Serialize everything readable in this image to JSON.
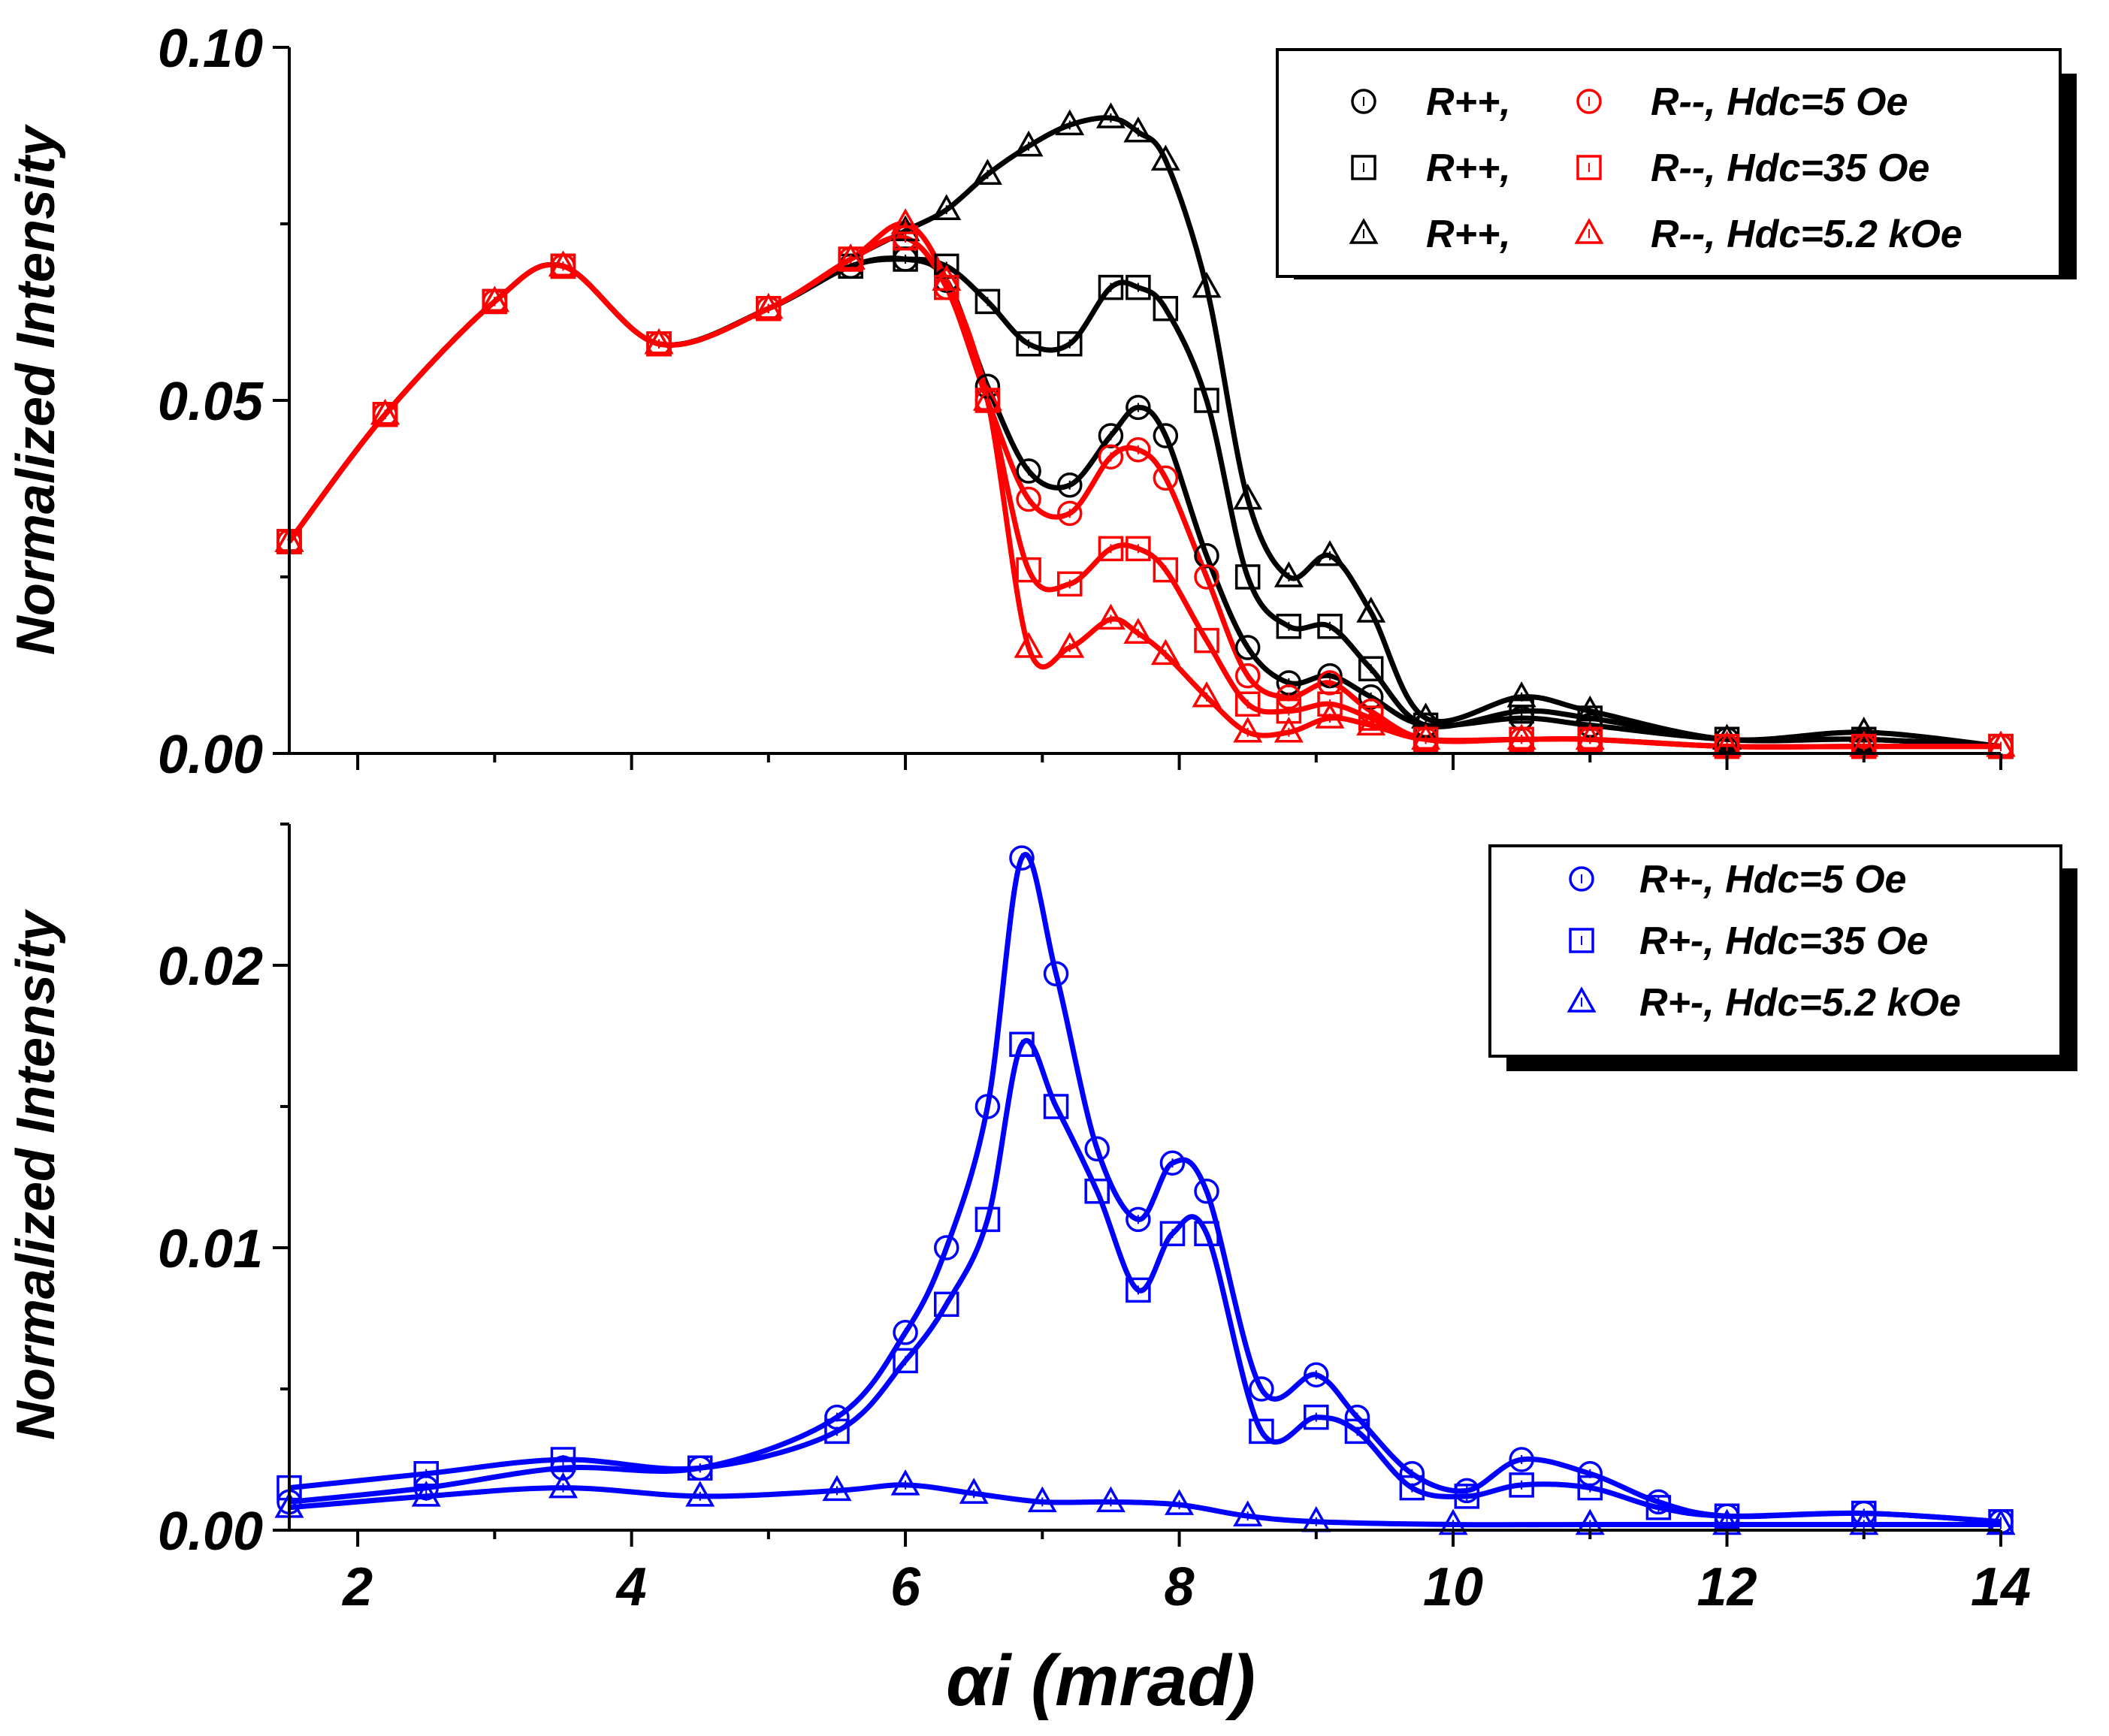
{
  "chart_data": [
    {
      "type": "scatter",
      "panel": "top",
      "xlabel": "",
      "ylabel": "Normalized Intensity",
      "xlim": [
        1.5,
        14
      ],
      "ylim": [
        0,
        0.1
      ],
      "yticks": [
        {
          "v": 0,
          "label": "0.00"
        },
        {
          "v": 0.05,
          "label": "0.05"
        },
        {
          "v": 0.1,
          "label": "0.10"
        }
      ],
      "legend": {
        "position": "top-right",
        "columns": [
          [
            "R++,",
            "R++,",
            "R++,"
          ],
          [
            "R--, Hdc=5 Oe",
            "R--, Hdc=35 Oe",
            "R--, Hdc=5.2 kOe"
          ]
        ]
      },
      "series": [
        {
          "name": "R++, Hdc=5 Oe",
          "color": "#000000",
          "marker": "circle",
          "x": [
            1.5,
            2.2,
            3.0,
            3.5,
            4.2,
            5.0,
            5.6,
            6.0,
            6.3,
            6.6,
            6.9,
            7.2,
            7.5,
            7.7,
            7.9,
            8.2,
            8.5,
            8.8,
            9.1,
            9.4,
            9.8,
            10.5,
            11.0,
            12.0,
            13.0,
            14.0
          ],
          "y": [
            0.03,
            0.048,
            0.064,
            0.069,
            0.058,
            0.063,
            0.069,
            0.07,
            0.067,
            0.052,
            0.04,
            0.038,
            0.045,
            0.049,
            0.045,
            0.028,
            0.015,
            0.01,
            0.011,
            0.008,
            0.004,
            0.005,
            0.004,
            0.002,
            0.002,
            0.001
          ]
        },
        {
          "name": "R++, Hdc=35 Oe",
          "color": "#000000",
          "marker": "square",
          "x": [
            1.5,
            2.2,
            3.0,
            3.5,
            4.2,
            5.0,
            5.6,
            6.0,
            6.3,
            6.6,
            6.9,
            7.2,
            7.5,
            7.7,
            7.9,
            8.2,
            8.5,
            8.8,
            9.1,
            9.4,
            9.8,
            10.5,
            11.0,
            12.0,
            13.0,
            14.0
          ],
          "y": [
            0.03,
            0.048,
            0.064,
            0.069,
            0.058,
            0.063,
            0.069,
            0.07,
            0.069,
            0.064,
            0.058,
            0.058,
            0.066,
            0.066,
            0.063,
            0.05,
            0.025,
            0.018,
            0.018,
            0.012,
            0.004,
            0.006,
            0.005,
            0.002,
            0.002,
            0.001
          ]
        },
        {
          "name": "R++, Hdc=5.2 kOe",
          "color": "#000000",
          "marker": "triangle",
          "x": [
            1.5,
            2.2,
            3.0,
            3.5,
            4.2,
            5.0,
            5.6,
            6.0,
            6.3,
            6.6,
            6.9,
            7.2,
            7.5,
            7.7,
            7.9,
            8.2,
            8.5,
            8.8,
            9.1,
            9.4,
            9.8,
            10.5,
            11.0,
            12.0,
            13.0,
            14.0
          ],
          "y": [
            0.03,
            0.048,
            0.064,
            0.069,
            0.058,
            0.063,
            0.07,
            0.074,
            0.077,
            0.082,
            0.086,
            0.089,
            0.09,
            0.088,
            0.084,
            0.066,
            0.036,
            0.025,
            0.028,
            0.02,
            0.005,
            0.008,
            0.006,
            0.002,
            0.003,
            0.001
          ]
        },
        {
          "name": "R--, Hdc=5 Oe",
          "color": "#ff0000",
          "marker": "circle",
          "x": [
            1.5,
            2.2,
            3.0,
            3.5,
            4.2,
            5.0,
            5.6,
            6.0,
            6.3,
            6.6,
            6.9,
            7.2,
            7.5,
            7.7,
            7.9,
            8.2,
            8.5,
            8.8,
            9.1,
            9.4,
            9.8,
            10.5,
            11.0,
            12.0,
            13.0,
            14.0
          ],
          "y": [
            0.03,
            0.048,
            0.064,
            0.069,
            0.058,
            0.063,
            0.07,
            0.073,
            0.066,
            0.05,
            0.036,
            0.034,
            0.042,
            0.043,
            0.039,
            0.025,
            0.011,
            0.008,
            0.01,
            0.006,
            0.002,
            0.002,
            0.002,
            0.001,
            0.001,
            0.001
          ]
        },
        {
          "name": "R--, Hdc=35 Oe",
          "color": "#ff0000",
          "marker": "square",
          "x": [
            1.5,
            2.2,
            3.0,
            3.5,
            4.2,
            5.0,
            5.6,
            6.0,
            6.3,
            6.6,
            6.9,
            7.2,
            7.5,
            7.7,
            7.9,
            8.2,
            8.5,
            8.8,
            9.1,
            9.4,
            9.8,
            10.5,
            11.0,
            12.0,
            13.0,
            14.0
          ],
          "y": [
            0.03,
            0.048,
            0.064,
            0.069,
            0.058,
            0.063,
            0.07,
            0.073,
            0.066,
            0.05,
            0.026,
            0.024,
            0.029,
            0.029,
            0.026,
            0.016,
            0.007,
            0.006,
            0.007,
            0.005,
            0.002,
            0.002,
            0.002,
            0.001,
            0.001,
            0.001
          ]
        },
        {
          "name": "R--, Hdc=5.2 kOe",
          "color": "#ff0000",
          "marker": "triangle",
          "x": [
            1.5,
            2.2,
            3.0,
            3.5,
            4.2,
            5.0,
            5.6,
            6.0,
            6.3,
            6.6,
            6.9,
            7.2,
            7.5,
            7.7,
            7.9,
            8.2,
            8.5,
            8.8,
            9.1,
            9.4,
            9.8,
            10.5,
            11.0,
            12.0,
            13.0,
            14.0
          ],
          "y": [
            0.03,
            0.048,
            0.064,
            0.069,
            0.058,
            0.063,
            0.07,
            0.075,
            0.067,
            0.05,
            0.015,
            0.015,
            0.019,
            0.017,
            0.014,
            0.008,
            0.003,
            0.003,
            0.005,
            0.004,
            0.002,
            0.002,
            0.002,
            0.001,
            0.001,
            0.001
          ]
        }
      ]
    },
    {
      "type": "scatter",
      "panel": "bottom",
      "xlabel": "αi (mrad)",
      "ylabel": "Normalized Intensity",
      "xlim": [
        1.5,
        14
      ],
      "ylim": [
        0,
        0.025
      ],
      "xticks": [
        {
          "v": 2,
          "label": "2"
        },
        {
          "v": 4,
          "label": "4"
        },
        {
          "v": 6,
          "label": "6"
        },
        {
          "v": 8,
          "label": "8"
        },
        {
          "v": 10,
          "label": "10"
        },
        {
          "v": 12,
          "label": "12"
        },
        {
          "v": 14,
          "label": "14"
        }
      ],
      "yticks": [
        {
          "v": 0,
          "label": "0.00"
        },
        {
          "v": 0.01,
          "label": "0.01"
        },
        {
          "v": 0.02,
          "label": "0.02"
        }
      ],
      "legend": {
        "position": "top-right",
        "entries": [
          "R+-, Hdc=5 Oe",
          "R+-, Hdc=35 Oe",
          "R+-, Hdc=5.2 kOe"
        ]
      },
      "series": [
        {
          "name": "R+-, Hdc=5 Oe",
          "color": "#0000ff",
          "marker": "circle",
          "x": [
            1.5,
            2.5,
            3.5,
            4.5,
            5.5,
            6.0,
            6.3,
            6.6,
            6.85,
            7.1,
            7.4,
            7.7,
            7.95,
            8.2,
            8.6,
            9.0,
            9.3,
            9.7,
            10.1,
            10.5,
            11.0,
            11.5,
            12.0,
            13.0,
            14.0
          ],
          "y": [
            0.001,
            0.0015,
            0.0022,
            0.0022,
            0.004,
            0.007,
            0.01,
            0.015,
            0.0238,
            0.0197,
            0.0135,
            0.011,
            0.013,
            0.012,
            0.005,
            0.0055,
            0.004,
            0.002,
            0.0014,
            0.0025,
            0.002,
            0.001,
            0.0005,
            0.0006,
            0.0003
          ]
        },
        {
          "name": "R+-, Hdc=35 Oe",
          "color": "#0000ff",
          "marker": "square",
          "x": [
            1.5,
            2.5,
            3.5,
            4.5,
            5.5,
            6.0,
            6.3,
            6.6,
            6.85,
            7.1,
            7.4,
            7.7,
            7.95,
            8.2,
            8.6,
            9.0,
            9.3,
            9.7,
            10.1,
            10.5,
            11.0,
            11.5,
            12.0,
            13.0,
            14.0
          ],
          "y": [
            0.0015,
            0.002,
            0.0025,
            0.0022,
            0.0035,
            0.006,
            0.008,
            0.011,
            0.0172,
            0.015,
            0.012,
            0.0085,
            0.0105,
            0.0105,
            0.0035,
            0.004,
            0.0035,
            0.0015,
            0.0012,
            0.0016,
            0.0015,
            0.0008,
            0.0005,
            0.0006,
            0.0003
          ]
        },
        {
          "name": "R+-, Hdc=5.2 kOe",
          "color": "#0000ff",
          "marker": "triangle",
          "x": [
            1.5,
            2.5,
            3.5,
            4.5,
            5.5,
            6.0,
            6.5,
            7.0,
            7.5,
            8.0,
            8.5,
            9.0,
            10.0,
            11.0,
            12.0,
            13.0,
            14.0
          ],
          "y": [
            0.0008,
            0.0012,
            0.0015,
            0.0012,
            0.0014,
            0.0016,
            0.0013,
            0.001,
            0.001,
            0.0009,
            0.0005,
            0.0003,
            0.0002,
            0.0002,
            0.0002,
            0.0002,
            0.0002
          ]
        }
      ]
    }
  ]
}
